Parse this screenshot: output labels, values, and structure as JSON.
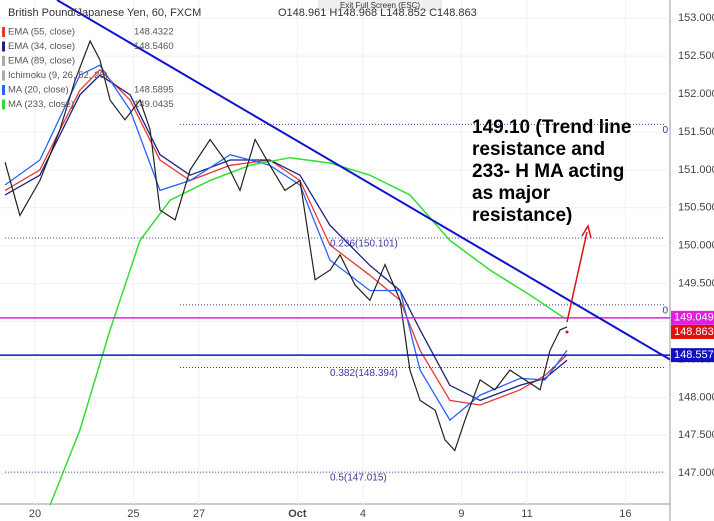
{
  "chart_data": {
    "type": "line",
    "header": "British Pound/Japanese Yen, 60, FXCM",
    "ohlc": "O148.961 H148.968 L148.852 C148.863",
    "exit_button": "Exit Full Screen (ESC)",
    "annotation": [
      "149.10 (Trend line",
      "resistance and",
      "233- H MA acting",
      "as major",
      "resistance)"
    ],
    "xlim": [
      -1.067,
      19.36
    ],
    "ylim": [
      146.37,
      153.24
    ],
    "xticks": [
      {
        "value": 0,
        "label": "20"
      },
      {
        "value": 3,
        "label": "25"
      },
      {
        "value": 5,
        "label": "27"
      },
      {
        "value": 8,
        "label": "Oct"
      },
      {
        "value": 10,
        "label": "4"
      },
      {
        "value": 13,
        "label": "9"
      },
      {
        "value": 15,
        "label": "11"
      },
      {
        "value": 18,
        "label": "16"
      }
    ],
    "yticks": [
      {
        "value": 147,
        "label": "147.000"
      },
      {
        "value": 147.5,
        "label": "147.500"
      },
      {
        "value": 148,
        "label": "148.000"
      },
      {
        "value": 148.5,
        "label": "148.500"
      },
      {
        "value": 149,
        "label": "149.000"
      },
      {
        "value": 149.5,
        "label": "149.500"
      },
      {
        "value": 150,
        "label": "150.000"
      },
      {
        "value": 150.5,
        "label": "150.500"
      },
      {
        "value": 151,
        "label": "151.000"
      },
      {
        "value": 151.5,
        "label": "151.500"
      },
      {
        "value": 152,
        "label": "152.000"
      },
      {
        "value": 152.5,
        "label": "152.500"
      },
      {
        "value": 153,
        "label": "153.000"
      }
    ],
    "grid": true,
    "price": {
      "color": "#222222",
      "x": [
        -0.91,
        -0.46,
        0.15,
        0.76,
        1.22,
        1.68,
        1.98,
        2.29,
        2.74,
        3.2,
        3.51,
        3.81,
        4.27,
        4.73,
        5.34,
        5.79,
        6.25,
        6.71,
        7.16,
        7.62,
        8.08,
        8.54,
        9.0,
        9.3,
        9.76,
        10.21,
        10.67,
        11.13,
        11.43,
        11.74,
        12.2,
        12.5,
        12.8,
        13.11,
        13.57,
        14.02,
        14.48,
        14.94,
        15.4,
        15.7,
        16.01,
        16.22
      ],
      "values": [
        151.1,
        150.4,
        150.86,
        151.53,
        152.18,
        152.7,
        152.45,
        151.92,
        151.66,
        151.92,
        151.53,
        150.47,
        150.34,
        151.0,
        151.4,
        151.13,
        150.73,
        151.4,
        151.06,
        150.73,
        150.86,
        149.55,
        149.68,
        149.88,
        149.48,
        149.28,
        149.75,
        149.28,
        148.36,
        147.96,
        147.83,
        147.44,
        147.3,
        147.7,
        148.23,
        148.1,
        148.36,
        148.23,
        148.1,
        148.62,
        148.89,
        148.93
      ]
    },
    "series": [
      {
        "name": "EMA (55, close)",
        "last": "148.4322",
        "color": "#e53935",
        "x": [
          -0.91,
          0.15,
          1.37,
          1.98,
          2.9,
          3.81,
          4.73,
          5.95,
          7.16,
          8.08,
          8.99,
          10.21,
          11.13,
          11.74,
          12.65,
          13.57,
          14.79,
          15.55,
          16.22
        ],
        "values": [
          150.73,
          151.0,
          152.05,
          152.32,
          151.92,
          151.13,
          150.86,
          151.06,
          151.13,
          150.86,
          150.01,
          149.61,
          149.28,
          148.62,
          147.96,
          147.9,
          148.1,
          148.29,
          148.56
        ]
      },
      {
        "name": "EMA (34, close)",
        "last": "148.5460",
        "color": "#1a237e",
        "x": [
          -0.91,
          0.15,
          1.37,
          1.98,
          2.9,
          3.81,
          4.73,
          5.95,
          7.16,
          8.08,
          8.99,
          10.21,
          11.13,
          11.74,
          12.65,
          13.57,
          14.79,
          15.55,
          16.22
        ],
        "values": [
          150.67,
          150.93,
          151.99,
          152.25,
          151.99,
          151.2,
          150.93,
          151.13,
          151.13,
          150.93,
          150.27,
          149.74,
          149.41,
          148.89,
          148.16,
          147.96,
          148.16,
          148.25,
          148.49
        ]
      },
      {
        "name": "EMA (89, close)",
        "color": "#aaaaaa"
      },
      {
        "name": "Ichimoku (9, 26, 52, 26)",
        "color": "#aaaaaa"
      },
      {
        "name": "MA (20, close)",
        "last": "148.5895",
        "color": "#2962ff",
        "x": [
          -0.91,
          0.15,
          1.37,
          1.98,
          2.9,
          3.81,
          4.73,
          5.95,
          7.16,
          8.08,
          8.99,
          10.21,
          11.13,
          11.74,
          12.65,
          13.57,
          14.79,
          15.55,
          16.22
        ],
        "values": [
          150.8,
          151.13,
          152.25,
          152.38,
          151.79,
          150.73,
          150.86,
          151.2,
          151.06,
          150.8,
          149.81,
          149.41,
          149.41,
          148.36,
          147.7,
          148.03,
          148.25,
          148.23,
          148.62
        ]
      },
      {
        "name": "MA (233, close)",
        "last": "149.0435",
        "color": "#33dd33",
        "x": [
          0.46,
          1.37,
          2.29,
          3.2,
          4.12,
          5.34,
          6.55,
          7.77,
          8.99,
          10.21,
          11.43,
          12.65,
          13.87,
          15.09,
          16.16
        ],
        "values": [
          146.58,
          147.57,
          148.89,
          150.07,
          150.6,
          150.86,
          151.06,
          151.16,
          151.09,
          150.93,
          150.67,
          150.07,
          149.68,
          149.35,
          149.04
        ]
      }
    ],
    "trendline": {
      "color": "#1010d0",
      "x": [
        0.67,
        19.36
      ],
      "y": [
        153.24,
        148.5
      ]
    },
    "levels": [
      {
        "value": 149.049,
        "label": "149.049",
        "color": "#e020e0"
      },
      {
        "value": 148.557,
        "label": "148.557",
        "color": "#1010c0"
      }
    ],
    "last_price": {
      "value": 148.863,
      "label": "148.863",
      "color": "#e01010"
    },
    "fib": [
      {
        "value": 151.6,
        "label": "0",
        "from": 4.42
      },
      {
        "value": 150.101,
        "label": "0.236(150.101)",
        "from": -0.91
      },
      {
        "value": 149.22,
        "label": "0",
        "from": 4.42
      },
      {
        "value": 148.394,
        "label": "0.382(148.394)",
        "from": 4.42
      },
      {
        "value": 147.015,
        "label": "0.5(147.015)",
        "from": -0.91
      }
    ]
  }
}
